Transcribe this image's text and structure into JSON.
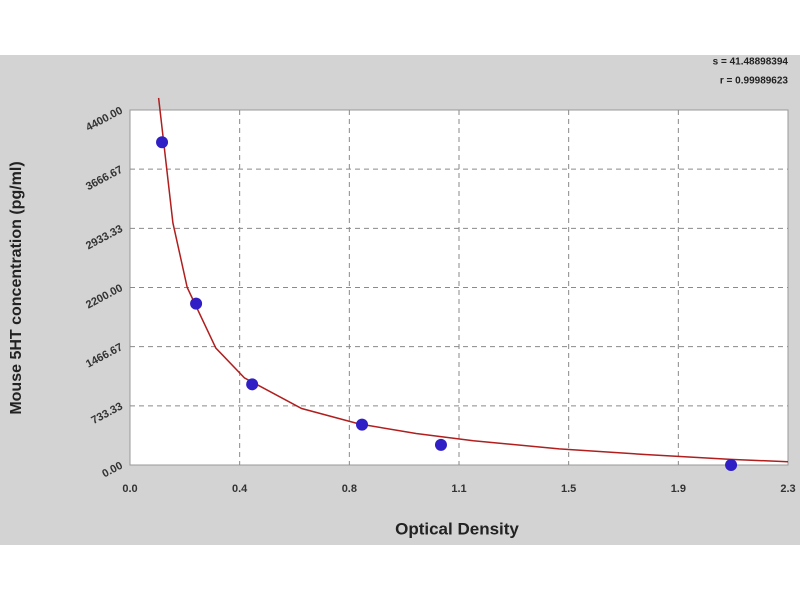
{
  "chart_data": {
    "type": "scatter",
    "x_label": "Optical Density",
    "y_label": "Mouse 5HT  concentration (pg/ml)",
    "annotations": [
      "s = 41.48898394",
      "r = 0.99989623"
    ],
    "xlim": [
      0,
      2.3
    ],
    "xticks": [
      {
        "value": 0,
        "label": "0.0"
      },
      {
        "value": 0.3833,
        "label": "0.4"
      },
      {
        "value": 0.7667,
        "label": "0.8"
      },
      {
        "value": 1.15,
        "label": "1.1"
      },
      {
        "value": 1.5333,
        "label": "1.5"
      },
      {
        "value": 1.9167,
        "label": "1.9"
      },
      2.3
    ],
    "ylim": [
      0,
      4400
    ],
    "yticks": [
      {
        "value": 0,
        "label": "0.00"
      },
      733.33,
      1466.67,
      {
        "value": 2200,
        "label": "2200.00"
      },
      2933.33,
      3666.67,
      {
        "value": 4400,
        "label": "4400.00"
      }
    ],
    "grid": true,
    "series": [
      {
        "mode": "markers",
        "color": "#2f1fc4",
        "x": [
          0.112,
          0.231,
          0.427,
          0.811,
          1.087,
          2.101
        ],
        "values": [
          4000,
          2000,
          1000,
          500,
          250,
          0
        ]
      },
      {
        "mode": "line",
        "color": "#b01e1e",
        "x": [
          0.1,
          0.15,
          0.2,
          0.3,
          0.4,
          0.6,
          0.8,
          1.0,
          1.2,
          1.5,
          1.8,
          2.1,
          2.3
        ],
        "values": [
          4550,
          3000,
          2200,
          1450,
          1080,
          700,
          510,
          390,
          300,
          200,
          130,
          70,
          40
        ]
      }
    ]
  }
}
